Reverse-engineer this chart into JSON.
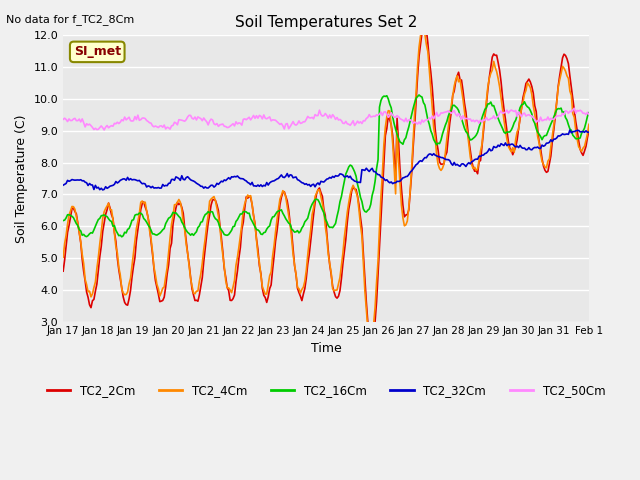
{
  "title": "Soil Temperatures Set 2",
  "no_data_text": "No data for f_TC2_8Cm",
  "xlabel": "Time",
  "ylabel": "Soil Temperature (C)",
  "ylim": [
    3.0,
    12.0
  ],
  "yticks": [
    3.0,
    4.0,
    5.0,
    6.0,
    7.0,
    8.0,
    9.0,
    10.0,
    11.0,
    12.0
  ],
  "xtick_labels": [
    "Jan 17",
    "Jan 18",
    "Jan 19",
    "Jan 20",
    "Jan 21",
    "Jan 22",
    "Jan 23",
    "Jan 24",
    "Jan 25",
    "Jan 26",
    "Jan 27",
    "Jan 28",
    "Jan 29",
    "Jan 30",
    "Jan 31",
    "Feb 1"
  ],
  "series_colors": {
    "TC2_2Cm": "#dd0000",
    "TC2_4Cm": "#ff8800",
    "TC2_16Cm": "#00cc00",
    "TC2_32Cm": "#0000cc",
    "TC2_50Cm": "#ff88ff"
  },
  "legend_label": "SI_met",
  "legend_box_color": "#ffffcc",
  "legend_box_border": "#888800",
  "legend_text_color": "#880000",
  "background_color": "#e8e8e8",
  "plot_bg_color": "#e8e8e8",
  "grid_color": "#ffffff",
  "n_points": 360
}
